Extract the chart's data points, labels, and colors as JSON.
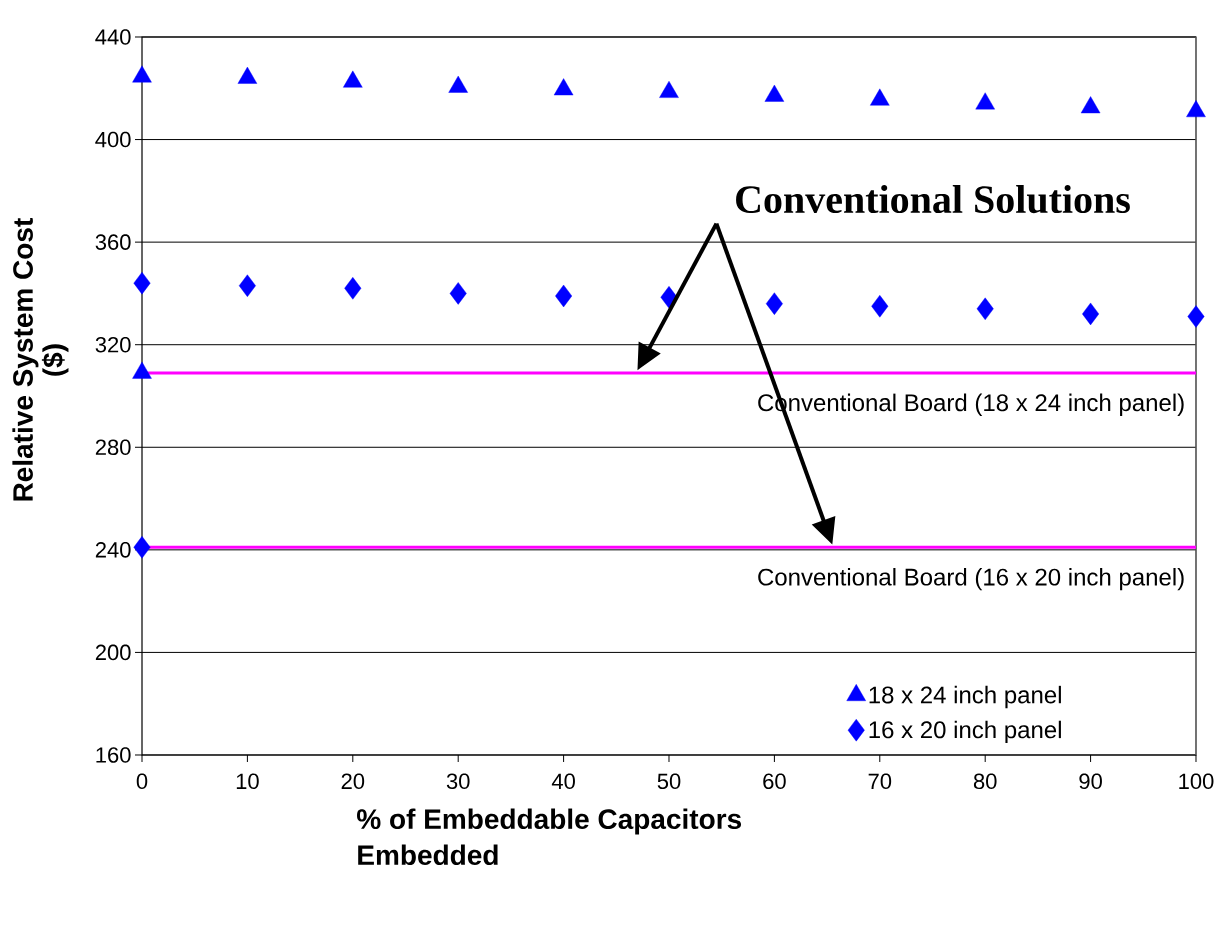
{
  "chart_data": {
    "type": "scatter",
    "xlabel": "% of Embeddable Capacitors Embedded",
    "ylabel": "Relative System Cost ($)",
    "x": [
      0,
      10,
      20,
      30,
      40,
      50,
      60,
      70,
      80,
      90,
      100
    ],
    "series": [
      {
        "name": "18 x 24 inch panel",
        "color": "#0000ff",
        "marker": "triangle",
        "values": [
          424.5,
          424,
          422.5,
          420.5,
          419.5,
          418.5,
          417,
          415.5,
          414,
          412.5,
          411
        ]
      },
      {
        "name": "16 x 20 inch panel",
        "color": "#0000ff",
        "marker": "diamond",
        "values": [
          344,
          343,
          342,
          340,
          339,
          338.5,
          336,
          335,
          334,
          332,
          331
        ]
      },
      {
        "color": "#0000ff",
        "marker": "triangle",
        "x": [
          0
        ],
        "values": [
          309
        ]
      },
      {
        "color": "#0000ff",
        "marker": "diamond",
        "x": [
          0
        ],
        "values": [
          241
        ]
      }
    ],
    "ref_lines": [
      {
        "axis": "y",
        "value": 309,
        "label": "Conventional Board (18 x 24 inch panel)",
        "color": "#ff00ff"
      },
      {
        "axis": "y",
        "value": 241,
        "label": "Conventional Board (16 x 20 inch panel)",
        "color": "#ff00ff"
      }
    ],
    "annotations": [
      "Conventional Solutions"
    ],
    "xlim": [
      0,
      100
    ],
    "ylim": [
      160,
      440
    ],
    "xticks": [
      0,
      10,
      20,
      30,
      40,
      50,
      60,
      70,
      80,
      90,
      100
    ],
    "yticks": [
      160,
      200,
      240,
      280,
      320,
      360,
      400,
      440
    ],
    "grid": "y",
    "legend": "bottom right"
  }
}
